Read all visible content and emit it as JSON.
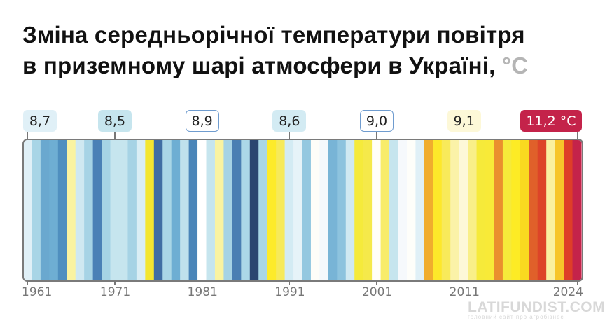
{
  "title": {
    "line1": "Зміна середньорічної температури повітря",
    "line2": "в приземному шарі атмосфери в Україні,",
    "unit": "°C"
  },
  "chart_data": {
    "type": "warming-stripes",
    "title": "Зміна середньорічної температури повітря в приземному шарі атмосфери в Україні, °C",
    "years": [
      1961,
      2024
    ],
    "x_ticks": [
      "1961",
      "1971",
      "1981",
      "1991",
      "2001",
      "2011",
      "2024"
    ],
    "stripe_colors": [
      "#e0f0f7",
      "#a8d5e6",
      "#6aa8cf",
      "#6eaed3",
      "#4f8fbf",
      "#faf3a0",
      "#cfe8f1",
      "#a6d3e5",
      "#4a80b6",
      "#a6d3e5",
      "#c6e5ee",
      "#c6e5ee",
      "#a6d3e5",
      "#daeef5",
      "#f4e630",
      "#3f6ea3",
      "#a9d6e6",
      "#6eaed3",
      "#bfe1ec",
      "#4a85b8",
      "#ffffff",
      "#c6e5ee",
      "#faf3a0",
      "#a6d3e5",
      "#4a7fb3",
      "#acd8e8",
      "#2b4570",
      "#a9d6e6",
      "#fdeb2a",
      "#f6ea5a",
      "#d3ebf3",
      "#e6f3f8",
      "#94c8e0",
      "#fefdf8",
      "#f4f8fc",
      "#78b4d6",
      "#8dc3de",
      "#d0e9f2",
      "#f5ea3b",
      "#f5e94a",
      "#fffef8",
      "#f8ec6a",
      "#c6e5ee",
      "#f6f9fc",
      "#fefefa",
      "#e0f0f7",
      "#f0ad2e",
      "#fde82a",
      "#f8ea5a",
      "#fbf2a8",
      "#fdf8d8",
      "#f9ef88",
      "#f6ea3a",
      "#f8ea38",
      "#ea8f2e",
      "#f6ea3a",
      "#fdeb25",
      "#f9d920",
      "#e0602a",
      "#dd4428",
      "#faf0a0",
      "#f7c52a",
      "#de3e28",
      "#c4234a"
    ],
    "annotations": [
      {
        "year": 1961,
        "label": "8,7",
        "bg": "#e0f0f7",
        "border": "#e0f0f7",
        "color": "#222"
      },
      {
        "year": 1971,
        "label": "8,5",
        "bg": "#c6e5ee",
        "border": "#c6e5ee",
        "color": "#222"
      },
      {
        "year": 1981,
        "label": "8,9",
        "bg": "#ffffff",
        "border": "#6f9ccf",
        "color": "#222"
      },
      {
        "year": 1991,
        "label": "8,6",
        "bg": "#d3ebf3",
        "border": "#d3ebf3",
        "color": "#222"
      },
      {
        "year": 2001,
        "label": "9,0",
        "bg": "#ffffff",
        "border": "#6f9ccf",
        "color": "#222"
      },
      {
        "year": 2011,
        "label": "9,1",
        "bg": "#fdf8d8",
        "border": "#fdf8d8",
        "color": "#222"
      },
      {
        "year": 2024,
        "label": "11,2 °C",
        "bg": "#c4234a",
        "border": "#c4234a",
        "color": "#ffffff"
      }
    ]
  },
  "watermark": {
    "brand": "LATIFUNDIST.COM",
    "tagline": "головний сайт про агробізнес"
  }
}
